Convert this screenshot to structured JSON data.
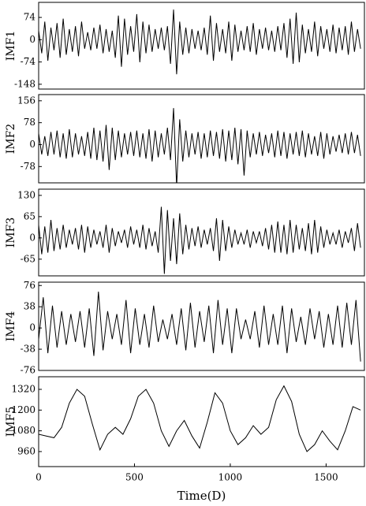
{
  "chart_data": [
    {
      "type": "line",
      "ylabel": "IMF1",
      "color": "#000000",
      "x": [
        0,
        16,
        32,
        48,
        64,
        80,
        96,
        112,
        128,
        144,
        160,
        176,
        192,
        208,
        224,
        240,
        256,
        272,
        288,
        304,
        320,
        336,
        352,
        368,
        384,
        400,
        416,
        432,
        448,
        464,
        480,
        496,
        512,
        528,
        544,
        560,
        576,
        592,
        608,
        624,
        640,
        656,
        672,
        688,
        704,
        720,
        736,
        752,
        768,
        784,
        800,
        816,
        832,
        848,
        864,
        880,
        896,
        912,
        928,
        944,
        960,
        976,
        992,
        1008,
        1024,
        1040,
        1056,
        1072,
        1088,
        1104,
        1120,
        1136,
        1152,
        1168,
        1184,
        1200,
        1216,
        1232,
        1248,
        1264,
        1280,
        1296,
        1312,
        1328,
        1344,
        1360,
        1376,
        1392,
        1408,
        1424,
        1440,
        1456,
        1472,
        1488,
        1504,
        1520,
        1536,
        1552,
        1568,
        1584,
        1600,
        1616,
        1632,
        1648,
        1664,
        1680
      ],
      "values": [
        30,
        -45,
        60,
        -70,
        40,
        -35,
        55,
        -60,
        70,
        -50,
        35,
        -40,
        45,
        -55,
        60,
        -30,
        25,
        -35,
        40,
        -30,
        50,
        -45,
        35,
        -40,
        30,
        -60,
        80,
        -90,
        70,
        -50,
        45,
        -40,
        85,
        -75,
        60,
        -45,
        50,
        -40,
        35,
        -30,
        40,
        -35,
        45,
        -80,
        100,
        -115,
        60,
        -50,
        40,
        -45,
        35,
        -30,
        30,
        -35,
        40,
        -50,
        80,
        -70,
        55,
        -40,
        35,
        -45,
        60,
        -70,
        50,
        -40,
        30,
        -35,
        45,
        -40,
        55,
        -50,
        35,
        -30,
        40,
        -35,
        30,
        -40,
        45,
        -35,
        55,
        -60,
        70,
        -80,
        90,
        -75,
        50,
        -45,
        35,
        -40,
        60,
        -55,
        45,
        -30,
        35,
        -40,
        50,
        -45,
        40,
        -35,
        45,
        -50,
        60,
        -40,
        35,
        -30
      ],
      "xlim": [
        0,
        1700
      ],
      "ylim": [
        -164,
        124
      ],
      "yticks": [
        74,
        0,
        -74,
        -148
      ]
    },
    {
      "type": "line",
      "ylabel": "IMF2",
      "color": "#000000",
      "x": [
        0,
        16,
        32,
        48,
        64,
        80,
        96,
        112,
        128,
        144,
        160,
        176,
        192,
        208,
        224,
        240,
        256,
        272,
        288,
        304,
        320,
        336,
        352,
        368,
        384,
        400,
        416,
        432,
        448,
        464,
        480,
        496,
        512,
        528,
        544,
        560,
        576,
        592,
        608,
        624,
        640,
        656,
        672,
        688,
        704,
        720,
        736,
        752,
        768,
        784,
        800,
        816,
        832,
        848,
        864,
        880,
        896,
        912,
        928,
        944,
        960,
        976,
        992,
        1008,
        1024,
        1040,
        1056,
        1072,
        1088,
        1104,
        1120,
        1136,
        1152,
        1168,
        1184,
        1200,
        1216,
        1232,
        1248,
        1264,
        1280,
        1296,
        1312,
        1328,
        1344,
        1360,
        1376,
        1392,
        1408,
        1424,
        1440,
        1456,
        1472,
        1488,
        1504,
        1520,
        1536,
        1552,
        1568,
        1584,
        1600,
        1616,
        1632,
        1648,
        1664,
        1680
      ],
      "values": [
        40,
        -35,
        30,
        -40,
        45,
        -35,
        50,
        -45,
        40,
        -50,
        55,
        -45,
        40,
        -35,
        30,
        -40,
        45,
        -50,
        60,
        -55,
        50,
        -60,
        70,
        -90,
        60,
        -55,
        50,
        -45,
        40,
        -35,
        45,
        -40,
        50,
        -45,
        40,
        -50,
        55,
        -60,
        50,
        -45,
        40,
        -35,
        60,
        -55,
        130,
        -150,
        90,
        -60,
        50,
        -45,
        40,
        -35,
        45,
        -50,
        40,
        -45,
        50,
        -40,
        45,
        -50,
        55,
        -60,
        50,
        -55,
        60,
        -70,
        55,
        -110,
        50,
        -45,
        40,
        -35,
        45,
        -40,
        35,
        -30,
        40,
        -45,
        50,
        -40,
        45,
        -50,
        40,
        -35,
        45,
        -40,
        50,
        -45,
        40,
        -35,
        30,
        -40,
        45,
        -50,
        40,
        -35,
        30,
        -25,
        35,
        -30,
        40,
        -35,
        45,
        -30,
        35,
        -40
      ],
      "xlim": [
        0,
        1700
      ],
      "ylim": [
        -136,
        178
      ],
      "yticks": [
        156,
        78,
        0,
        -78
      ]
    },
    {
      "type": "line",
      "ylabel": "IMF3",
      "color": "#000000",
      "x": [
        0,
        16,
        32,
        48,
        64,
        80,
        96,
        112,
        128,
        144,
        160,
        176,
        192,
        208,
        224,
        240,
        256,
        272,
        288,
        304,
        320,
        336,
        352,
        368,
        384,
        400,
        416,
        432,
        448,
        464,
        480,
        496,
        512,
        528,
        544,
        560,
        576,
        592,
        608,
        624,
        640,
        656,
        672,
        688,
        704,
        720,
        736,
        752,
        768,
        784,
        800,
        816,
        832,
        848,
        864,
        880,
        896,
        912,
        928,
        944,
        960,
        976,
        992,
        1008,
        1024,
        1040,
        1056,
        1072,
        1088,
        1104,
        1120,
        1136,
        1152,
        1168,
        1184,
        1200,
        1216,
        1232,
        1248,
        1264,
        1280,
        1296,
        1312,
        1328,
        1344,
        1360,
        1376,
        1392,
        1408,
        1424,
        1440,
        1456,
        1472,
        1488,
        1504,
        1520,
        1536,
        1552,
        1568,
        1584,
        1600,
        1616,
        1632,
        1648,
        1664,
        1680
      ],
      "values": [
        40,
        -50,
        35,
        -45,
        55,
        -40,
        30,
        -35,
        40,
        -30,
        25,
        -20,
        30,
        -35,
        40,
        -45,
        35,
        -30,
        25,
        -20,
        20,
        -30,
        40,
        -45,
        30,
        -25,
        20,
        -15,
        25,
        -30,
        35,
        -20,
        25,
        -30,
        40,
        -35,
        30,
        -25,
        20,
        -45,
        95,
        -110,
        85,
        -70,
        60,
        -80,
        75,
        -50,
        40,
        -35,
        30,
        -25,
        35,
        -30,
        25,
        -20,
        30,
        -40,
        60,
        -70,
        55,
        -40,
        35,
        -30,
        25,
        -20,
        15,
        -20,
        25,
        -30,
        20,
        -15,
        20,
        -25,
        30,
        -35,
        40,
        -45,
        50,
        -45,
        40,
        -50,
        55,
        -45,
        40,
        -35,
        30,
        -40,
        45,
        -50,
        55,
        -45,
        35,
        -30,
        25,
        -20,
        15,
        -20,
        25,
        -30,
        20,
        -15,
        30,
        -40,
        45,
        -30
      ],
      "xlim": [
        0,
        1700
      ],
      "ylim": [
        -116,
        149
      ],
      "yticks": [
        130,
        65,
        0,
        -65
      ]
    },
    {
      "type": "line",
      "ylabel": "IMF4",
      "color": "#000000",
      "x": [
        0,
        24,
        48,
        72,
        96,
        120,
        144,
        168,
        192,
        216,
        240,
        264,
        288,
        312,
        336,
        360,
        384,
        408,
        432,
        456,
        480,
        504,
        528,
        552,
        576,
        600,
        624,
        648,
        672,
        696,
        720,
        744,
        768,
        792,
        816,
        840,
        864,
        888,
        912,
        936,
        960,
        984,
        1008,
        1032,
        1056,
        1080,
        1104,
        1128,
        1152,
        1176,
        1200,
        1224,
        1248,
        1272,
        1296,
        1320,
        1344,
        1368,
        1392,
        1416,
        1440,
        1464,
        1488,
        1512,
        1536,
        1560,
        1584,
        1608,
        1632,
        1656,
        1680
      ],
      "values": [
        -20,
        55,
        -45,
        40,
        -35,
        30,
        -30,
        25,
        -25,
        30,
        -35,
        35,
        -50,
        65,
        -40,
        30,
        -20,
        25,
        -30,
        50,
        -45,
        35,
        -30,
        25,
        -35,
        40,
        -25,
        15,
        -20,
        25,
        -30,
        35,
        -40,
        45,
        -35,
        30,
        -25,
        40,
        -45,
        50,
        -30,
        35,
        -45,
        35,
        -20,
        15,
        -20,
        30,
        -35,
        40,
        -30,
        25,
        -30,
        40,
        -45,
        35,
        -25,
        20,
        -30,
        35,
        -20,
        30,
        -35,
        25,
        -30,
        40,
        -35,
        45,
        -30,
        50,
        -60
      ],
      "xlim": [
        0,
        1700
      ],
      "ylim": [
        -76,
        82
      ],
      "yticks": [
        76,
        38,
        0,
        -38,
        -76
      ]
    },
    {
      "type": "line",
      "ylabel": "IMF5",
      "xlabel": "Time(D)",
      "color": "#000000",
      "x": [
        0,
        40,
        80,
        120,
        160,
        200,
        240,
        280,
        320,
        360,
        400,
        440,
        480,
        520,
        560,
        600,
        640,
        680,
        720,
        760,
        800,
        840,
        880,
        920,
        960,
        1000,
        1040,
        1080,
        1120,
        1160,
        1200,
        1240,
        1280,
        1320,
        1360,
        1400,
        1440,
        1480,
        1520,
        1560,
        1600,
        1640,
        1680
      ],
      "values": [
        1060,
        1050,
        1040,
        1100,
        1240,
        1320,
        1280,
        1120,
        970,
        1060,
        1100,
        1060,
        1150,
        1280,
        1320,
        1240,
        1080,
        990,
        1080,
        1140,
        1050,
        980,
        1130,
        1300,
        1240,
        1080,
        1000,
        1040,
        1110,
        1060,
        1100,
        1260,
        1340,
        1250,
        1060,
        960,
        1000,
        1080,
        1020,
        970,
        1080,
        1220,
        1200
      ],
      "xlim": [
        0,
        1700
      ],
      "ylim": [
        873,
        1393
      ],
      "yticks": [
        1320,
        1200,
        1080,
        960
      ],
      "xticks": [
        0,
        500,
        1000,
        1500
      ]
    }
  ]
}
